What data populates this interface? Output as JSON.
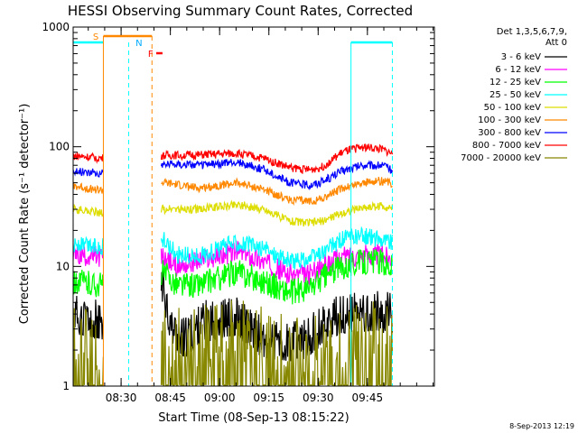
{
  "chart_data": {
    "type": "line",
    "title": "HESSI Observing Summary Count Rates, Corrected",
    "xlabel": "Start Time (08-Sep-13 08:15:22)",
    "ylabel": "Corrected Count Rate (s⁻¹ detector⁻¹)",
    "yscale": "log",
    "ylim": [
      1,
      1000
    ],
    "xlim_min": [
      0,
      110
    ],
    "x_unit": "minutes after 08:15:22",
    "x_ticks": [
      {
        "m": 14.6,
        "label": "08:30"
      },
      {
        "m": 29.6,
        "label": "08:45"
      },
      {
        "m": 44.6,
        "label": "09:00"
      },
      {
        "m": 59.6,
        "label": "09:15"
      },
      {
        "m": 74.6,
        "label": "09:30"
      },
      {
        "m": 89.6,
        "label": "09:45"
      }
    ],
    "y_ticks": [
      {
        "v": 1,
        "label": "1"
      },
      {
        "v": 10,
        "label": "10"
      },
      {
        "v": 100,
        "label": "100"
      },
      {
        "v": 1000,
        "label": "1000"
      }
    ],
    "legend": {
      "header": [
        "Det 1,3,5,6,7,9,",
        "Att 0"
      ],
      "position": "right"
    },
    "series": [
      {
        "name": "3 - 6 keV",
        "color": "#000000",
        "values": [
          [
            0,
            4.0
          ],
          [
            9,
            3.5
          ],
          [
            27,
            7.5
          ],
          [
            28,
            6
          ],
          [
            30,
            3
          ],
          [
            34,
            2.5
          ],
          [
            40,
            3.5
          ],
          [
            50,
            3.8
          ],
          [
            58,
            2.5
          ],
          [
            66,
            2.3
          ],
          [
            72,
            2.6
          ],
          [
            76,
            3.3
          ],
          [
            82,
            4
          ],
          [
            94,
            4.2
          ],
          [
            97,
            4.0
          ]
        ]
      },
      {
        "name": "6 - 12 keV",
        "color": "#ff00ff",
        "values": [
          [
            0,
            12.5
          ],
          [
            9,
            12
          ],
          [
            27,
            12
          ],
          [
            32,
            10
          ],
          [
            38,
            11
          ],
          [
            50,
            13.5
          ],
          [
            58,
            11
          ],
          [
            66,
            8.5
          ],
          [
            72,
            8.5
          ],
          [
            76,
            10
          ],
          [
            82,
            12
          ],
          [
            88,
            12.5
          ],
          [
            94,
            12.5
          ],
          [
            97,
            12
          ]
        ]
      },
      {
        "name": "12 - 25 keV",
        "color": "#00ff00",
        "values": [
          [
            0,
            7.5
          ],
          [
            9,
            7
          ],
          [
            27,
            9
          ],
          [
            32,
            7
          ],
          [
            38,
            7
          ],
          [
            50,
            9
          ],
          [
            58,
            7.5
          ],
          [
            66,
            6
          ],
          [
            72,
            6.5
          ],
          [
            76,
            8
          ],
          [
            82,
            10
          ],
          [
            88,
            11
          ],
          [
            94,
            11
          ],
          [
            97,
            10
          ]
        ]
      },
      {
        "name": "25 - 50 keV",
        "color": "#00ffff",
        "values": [
          [
            0,
            15
          ],
          [
            9,
            14.5
          ],
          [
            27,
            17
          ],
          [
            32,
            12.5
          ],
          [
            38,
            12
          ],
          [
            50,
            16
          ],
          [
            58,
            14
          ],
          [
            66,
            11
          ],
          [
            72,
            11.5
          ],
          [
            76,
            13
          ],
          [
            82,
            17
          ],
          [
            88,
            18
          ],
          [
            94,
            17
          ],
          [
            97,
            16
          ]
        ]
      },
      {
        "name": "50 - 100 keV",
        "color": "#dddd00",
        "values": [
          [
            0,
            30
          ],
          [
            9,
            28
          ],
          [
            27,
            30
          ],
          [
            32,
            30
          ],
          [
            38,
            30
          ],
          [
            50,
            33
          ],
          [
            58,
            30
          ],
          [
            66,
            24
          ],
          [
            72,
            23
          ],
          [
            76,
            24
          ],
          [
            82,
            28
          ],
          [
            88,
            31
          ],
          [
            94,
            32
          ],
          [
            97,
            31
          ]
        ]
      },
      {
        "name": "100 - 300 keV",
        "color": "#ff8800",
        "values": [
          [
            0,
            47
          ],
          [
            9,
            43
          ],
          [
            27,
            50
          ],
          [
            32,
            48
          ],
          [
            38,
            45
          ],
          [
            50,
            50
          ],
          [
            58,
            44
          ],
          [
            66,
            36
          ],
          [
            72,
            35
          ],
          [
            76,
            37
          ],
          [
            82,
            45
          ],
          [
            88,
            50
          ],
          [
            94,
            52
          ],
          [
            97,
            49
          ]
        ]
      },
      {
        "name": "300 - 800 keV",
        "color": "#0000ff",
        "values": [
          [
            0,
            63
          ],
          [
            9,
            60
          ],
          [
            27,
            72
          ],
          [
            32,
            72
          ],
          [
            38,
            70
          ],
          [
            50,
            74
          ],
          [
            58,
            65
          ],
          [
            66,
            50
          ],
          [
            72,
            48
          ],
          [
            76,
            51
          ],
          [
            82,
            63
          ],
          [
            88,
            70
          ],
          [
            94,
            70
          ],
          [
            97,
            64
          ]
        ]
      },
      {
        "name": "800 - 7000 keV",
        "color": "#ff0000",
        "values": [
          [
            0,
            84
          ],
          [
            9,
            80
          ],
          [
            27,
            84
          ],
          [
            32,
            85
          ],
          [
            38,
            85
          ],
          [
            50,
            88
          ],
          [
            58,
            80
          ],
          [
            66,
            67
          ],
          [
            72,
            64
          ],
          [
            76,
            68
          ],
          [
            82,
            90
          ],
          [
            88,
            100
          ],
          [
            94,
            95
          ],
          [
            97,
            88
          ]
        ]
      },
      {
        "name": "7000 - 20000 keV",
        "color": "#888800",
        "values": [
          [
            0,
            2.5
          ],
          [
            9,
            2.5
          ],
          [
            38,
            2.5
          ],
          [
            48,
            3
          ],
          [
            58,
            2.5
          ],
          [
            77,
            2
          ],
          [
            80,
            2.5
          ],
          [
            94,
            3
          ],
          [
            97,
            2.8
          ]
        ]
      }
    ],
    "flags": [
      {
        "label": "S",
        "color": "#ff8800"
      },
      {
        "label": "N",
        "color": "#00aaff"
      },
      {
        "label": "F",
        "color": "#ff0000"
      }
    ],
    "timestamp": "8-Sep-2013 12:19"
  }
}
